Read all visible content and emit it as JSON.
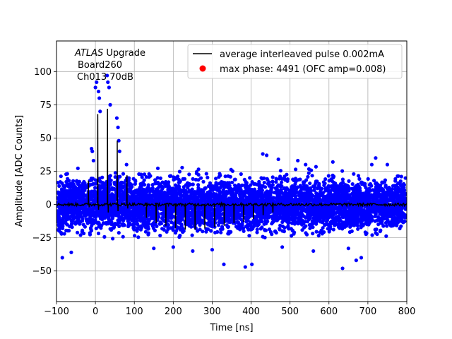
{
  "chart_data": {
    "type": "scatter",
    "xlabel": "Time [ns]",
    "ylabel": "Amplitude [ADC Counts]",
    "xlim": [
      -100,
      800
    ],
    "ylim": [
      -73,
      123
    ],
    "grid": true,
    "legend_placement": "top-right",
    "annotation": {
      "line1_italic": "ATLAS",
      "line1_rest": " Upgrade",
      "line2": "Board260",
      "line3": "Ch013 70dB"
    },
    "x_ticks": [
      {
        "value": -100,
        "label": "−100"
      },
      {
        "value": 0,
        "label": "0"
      },
      {
        "value": 100,
        "label": "100"
      },
      {
        "value": 200,
        "label": "200"
      },
      {
        "value": 300,
        "label": "300"
      },
      {
        "value": 400,
        "label": "400"
      },
      {
        "value": 500,
        "label": "500"
      },
      {
        "value": 600,
        "label": "600"
      },
      {
        "value": 700,
        "label": "700"
      },
      {
        "value": 800,
        "label": "800"
      }
    ],
    "y_ticks": [
      {
        "value": -50,
        "label": "−50"
      },
      {
        "value": -25,
        "label": "−25"
      },
      {
        "value": 0,
        "label": "0"
      },
      {
        "value": 25,
        "label": "25"
      },
      {
        "value": 50,
        "label": "50"
      },
      {
        "value": 75,
        "label": "75"
      },
      {
        "value": 100,
        "label": "100"
      }
    ],
    "series": [
      {
        "name": "average interleaved pulse 0.002mA",
        "kind": "line",
        "color": "#000000",
        "baseline": 0,
        "spikes": [
          {
            "x": -18,
            "y": 18
          },
          {
            "x": -16,
            "y": -2
          },
          {
            "x": 6,
            "y": 68
          },
          {
            "x": 8,
            "y": -4
          },
          {
            "x": 31,
            "y": 72
          },
          {
            "x": 33,
            "y": -6
          },
          {
            "x": 56,
            "y": 48
          },
          {
            "x": 58,
            "y": -5
          },
          {
            "x": 81,
            "y": 22
          },
          {
            "x": 83,
            "y": -3
          },
          {
            "x": 131,
            "y": -10
          },
          {
            "x": 156,
            "y": -14
          },
          {
            "x": 181,
            "y": -16
          },
          {
            "x": 206,
            "y": -18
          },
          {
            "x": 231,
            "y": -19
          },
          {
            "x": 256,
            "y": -19
          },
          {
            "x": 281,
            "y": -18
          },
          {
            "x": 306,
            "y": -17
          },
          {
            "x": 331,
            "y": -16
          },
          {
            "x": 356,
            "y": -14
          },
          {
            "x": 381,
            "y": -13
          },
          {
            "x": 406,
            "y": -11
          },
          {
            "x": 431,
            "y": -8
          },
          {
            "x": 456,
            "y": -6
          }
        ]
      },
      {
        "name": "max phase: 4491 (OFC amp=0.008)",
        "kind": "scatter",
        "color": "#ff0000"
      },
      {
        "name": "",
        "kind": "scatter",
        "color": "#0000ff",
        "noise_band": [
          -25,
          25
        ],
        "outliers": [
          {
            "x": 0,
            "y": 88
          },
          {
            "x": 3,
            "y": 92
          },
          {
            "x": 8,
            "y": 85
          },
          {
            "x": 10,
            "y": 80
          },
          {
            "x": 12,
            "y": 70
          },
          {
            "x": 30,
            "y": 97
          },
          {
            "x": 32,
            "y": 92
          },
          {
            "x": 35,
            "y": 88
          },
          {
            "x": 38,
            "y": 75
          },
          {
            "x": 55,
            "y": 65
          },
          {
            "x": 58,
            "y": 58
          },
          {
            "x": 60,
            "y": 48
          },
          {
            "x": 62,
            "y": 40
          },
          {
            "x": 80,
            "y": 30
          },
          {
            "x": 82,
            "y": 20
          },
          {
            "x": -10,
            "y": 42
          },
          {
            "x": -8,
            "y": 40
          },
          {
            "x": -5,
            "y": 33
          },
          {
            "x": -85,
            "y": -40
          },
          {
            "x": -62,
            "y": -36
          },
          {
            "x": 330,
            "y": -45
          },
          {
            "x": 385,
            "y": -47
          },
          {
            "x": 402,
            "y": -45
          },
          {
            "x": 635,
            "y": -48
          },
          {
            "x": 670,
            "y": -42
          },
          {
            "x": 683,
            "y": -40
          },
          {
            "x": 710,
            "y": 30
          },
          {
            "x": 720,
            "y": 35
          },
          {
            "x": 430,
            "y": 38
          },
          {
            "x": 440,
            "y": 37
          },
          {
            "x": 470,
            "y": 34
          },
          {
            "x": 520,
            "y": 33
          },
          {
            "x": 560,
            "y": -35
          },
          {
            "x": 610,
            "y": 32
          },
          {
            "x": 650,
            "y": -33
          },
          {
            "x": 750,
            "y": 30
          },
          {
            "x": 150,
            "y": -33
          },
          {
            "x": 200,
            "y": -32
          },
          {
            "x": 250,
            "y": -35
          },
          {
            "x": 300,
            "y": -34
          },
          {
            "x": 480,
            "y": -32
          },
          {
            "x": 540,
            "y": 30
          }
        ]
      }
    ]
  }
}
